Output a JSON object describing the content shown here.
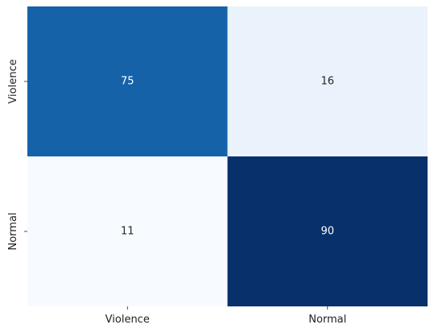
{
  "chart_data": {
    "type": "heatmap",
    "title": "",
    "xlabel": "",
    "ylabel": "",
    "x_categories": [
      "Violence",
      "Normal"
    ],
    "y_categories": [
      "Violence",
      "Normal"
    ],
    "values": [
      [
        75,
        16
      ],
      [
        11,
        90
      ]
    ],
    "colormap": "Blues",
    "colorbar": false,
    "grid": false
  }
}
